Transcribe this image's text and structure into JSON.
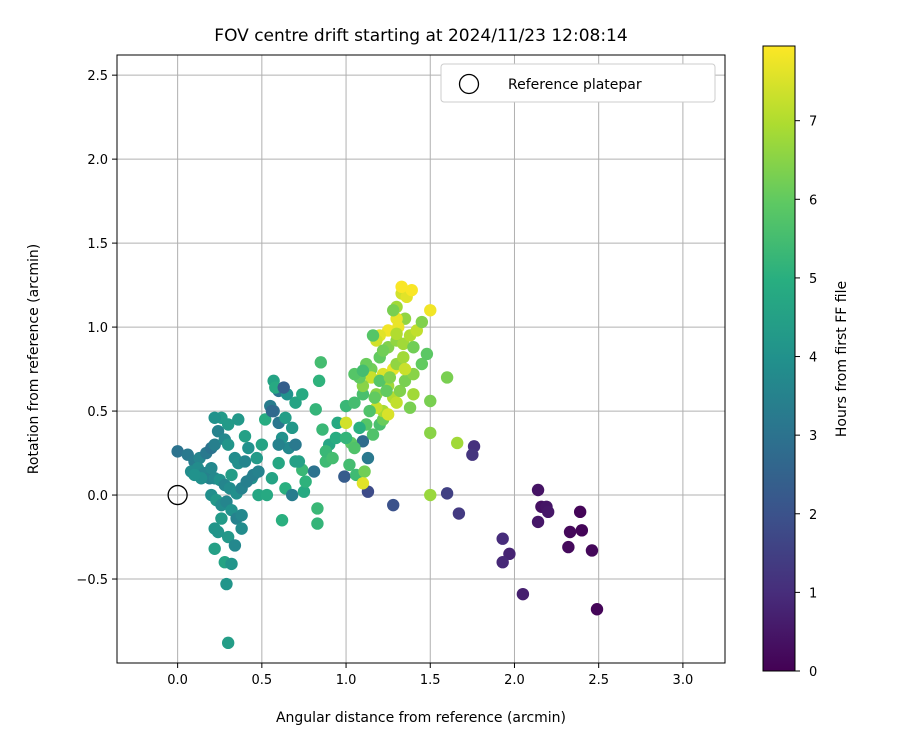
{
  "chart_data": {
    "type": "scatter",
    "title": "FOV centre drift starting at 2024/11/23 12:08:14",
    "xlabel": "Angular distance from reference (arcmin)",
    "ylabel": "Rotation from reference (arcmin)",
    "xlim": [
      -0.36,
      3.25
    ],
    "ylim": [
      -1.0,
      2.62
    ],
    "xticks": [
      0.0,
      0.5,
      1.0,
      1.5,
      2.0,
      2.5,
      3.0
    ],
    "xtick_labels": [
      "0.0",
      "0.5",
      "1.0",
      "1.5",
      "2.0",
      "2.5",
      "3.0"
    ],
    "yticks": [
      -0.5,
      0.0,
      0.5,
      1.0,
      1.5,
      2.0,
      2.5
    ],
    "ytick_labels": [
      "−0.5",
      "0.0",
      "0.5",
      "1.0",
      "1.5",
      "2.0",
      "2.5"
    ],
    "grid": true,
    "legend_position": "top-right",
    "legend": [
      {
        "label": "Reference platepar",
        "marker": "open-circle"
      }
    ],
    "reference_point": {
      "x": 0.0,
      "y": 0.0
    },
    "colorbar": {
      "label": "Hours from first FF file",
      "colormap": "viridis",
      "range": [
        0,
        7.95
      ],
      "ticks": [
        0,
        1,
        2,
        3,
        4,
        5,
        6,
        7
      ],
      "tick_labels": [
        "0",
        "1",
        "2",
        "3",
        "4",
        "5",
        "6",
        "7"
      ]
    },
    "points": [
      [
        2.49,
        -0.68,
        0.1
      ],
      [
        2.39,
        -0.1,
        0.1
      ],
      [
        2.4,
        -0.21,
        0.1
      ],
      [
        2.33,
        -0.22,
        0.15
      ],
      [
        2.32,
        -0.31,
        0.2
      ],
      [
        2.46,
        -0.33,
        0.15
      ],
      [
        2.14,
        0.03,
        0.4
      ],
      [
        2.16,
        -0.07,
        0.35
      ],
      [
        2.19,
        -0.07,
        0.45
      ],
      [
        2.2,
        -0.1,
        0.5
      ],
      [
        2.14,
        -0.16,
        0.5
      ],
      [
        2.05,
        -0.59,
        0.7
      ],
      [
        1.97,
        -0.35,
        0.8
      ],
      [
        1.93,
        -0.4,
        0.9
      ],
      [
        1.93,
        -0.26,
        1.0
      ],
      [
        1.76,
        0.29,
        1.1
      ],
      [
        1.75,
        0.24,
        1.2
      ],
      [
        1.67,
        -0.11,
        1.35
      ],
      [
        1.6,
        0.01,
        1.5
      ],
      [
        1.28,
        -0.06,
        2.0
      ],
      [
        1.13,
        0.02,
        1.8
      ],
      [
        0.99,
        0.11,
        2.3
      ],
      [
        1.13,
        0.22,
        3.2
      ],
      [
        1.1,
        0.32,
        2.8
      ],
      [
        0.0,
        0.26,
        3.0
      ],
      [
        0.06,
        0.24,
        3.2
      ],
      [
        0.1,
        0.2,
        3.3
      ],
      [
        0.13,
        0.22,
        3.6
      ],
      [
        0.17,
        0.25,
        3.2
      ],
      [
        0.2,
        0.28,
        3.0
      ],
      [
        0.22,
        0.3,
        3.4
      ],
      [
        0.24,
        0.38,
        3.5
      ],
      [
        0.28,
        0.33,
        3.7
      ],
      [
        0.3,
        0.3,
        4.1
      ],
      [
        0.34,
        0.22,
        3.8
      ],
      [
        0.36,
        0.19,
        3.9
      ],
      [
        0.4,
        0.2,
        3.6
      ],
      [
        0.44,
        0.1,
        4.0
      ],
      [
        0.08,
        0.14,
        3.8
      ],
      [
        0.12,
        0.16,
        3.8
      ],
      [
        0.16,
        0.13,
        3.6
      ],
      [
        0.19,
        0.1,
        3.5
      ],
      [
        0.22,
        0.1,
        3.7
      ],
      [
        0.25,
        0.09,
        4.0
      ],
      [
        0.28,
        0.06,
        3.6
      ],
      [
        0.31,
        0.04,
        3.8
      ],
      [
        0.35,
        0.01,
        3.9
      ],
      [
        0.38,
        0.04,
        3.5
      ],
      [
        0.41,
        0.08,
        3.4
      ],
      [
        0.45,
        0.12,
        3.4
      ],
      [
        0.48,
        0.14,
        3.5
      ],
      [
        0.2,
        0.0,
        3.9
      ],
      [
        0.23,
        -0.03,
        4.2
      ],
      [
        0.26,
        -0.06,
        3.8
      ],
      [
        0.29,
        -0.04,
        3.6
      ],
      [
        0.32,
        -0.09,
        4.0
      ],
      [
        0.35,
        -0.14,
        3.5
      ],
      [
        0.38,
        -0.2,
        3.8
      ],
      [
        0.22,
        -0.2,
        4.1
      ],
      [
        0.3,
        -0.25,
        4.2
      ],
      [
        0.34,
        -0.3,
        3.7
      ],
      [
        0.38,
        -0.12,
        3.7
      ],
      [
        0.22,
        -0.32,
        4.5
      ],
      [
        0.28,
        -0.4,
        4.6
      ],
      [
        0.32,
        -0.41,
        4.1
      ],
      [
        0.29,
        -0.53,
        4.1
      ],
      [
        0.3,
        -0.88,
        4.4
      ],
      [
        0.62,
        -0.15,
        5.0
      ],
      [
        0.83,
        -0.17,
        5.2
      ],
      [
        0.83,
        -0.08,
        5.3
      ],
      [
        0.64,
        0.04,
        5.0
      ],
      [
        0.68,
        0.0,
        3.3
      ],
      [
        0.75,
        0.02,
        4.8
      ],
      [
        0.76,
        0.08,
        5.1
      ],
      [
        0.74,
        0.15,
        5.3
      ],
      [
        0.7,
        0.2,
        4.5
      ],
      [
        0.66,
        0.28,
        3.7
      ],
      [
        0.62,
        0.34,
        4.0
      ],
      [
        0.6,
        0.43,
        3.1
      ],
      [
        0.57,
        0.5,
        2.9
      ],
      [
        0.55,
        0.53,
        3.3
      ],
      [
        0.6,
        0.62,
        3.0
      ],
      [
        0.65,
        0.6,
        4.0
      ],
      [
        0.7,
        0.55,
        4.6
      ],
      [
        0.74,
        0.6,
        4.8
      ],
      [
        0.57,
        0.68,
        4.6
      ],
      [
        0.58,
        0.64,
        4.8
      ],
      [
        0.84,
        0.68,
        5.1
      ],
      [
        0.85,
        0.79,
        5.5
      ],
      [
        0.82,
        0.51,
        5.2
      ],
      [
        0.86,
        0.39,
        5.3
      ],
      [
        0.9,
        0.3,
        4.7
      ],
      [
        0.88,
        0.2,
        5.4
      ],
      [
        0.81,
        0.14,
        3.0
      ],
      [
        0.94,
        0.34,
        4.9
      ],
      [
        0.95,
        0.43,
        4.8
      ],
      [
        1.0,
        0.53,
        5.3
      ],
      [
        1.05,
        0.55,
        5.5
      ],
      [
        1.1,
        0.6,
        5.6
      ],
      [
        1.12,
        0.42,
        5.8
      ],
      [
        1.16,
        0.36,
        5.7
      ],
      [
        1.2,
        0.42,
        5.6
      ],
      [
        1.22,
        0.45,
        6.1
      ],
      [
        1.03,
        0.31,
        5.9
      ],
      [
        1.05,
        0.28,
        5.7
      ],
      [
        1.02,
        0.18,
        5.5
      ],
      [
        1.06,
        0.12,
        5.4
      ],
      [
        1.11,
        0.14,
        6.2
      ],
      [
        1.1,
        0.07,
        7.6
      ],
      [
        1.18,
        0.6,
        6.5
      ],
      [
        1.25,
        0.65,
        6.8
      ],
      [
        1.28,
        0.58,
        7.0
      ],
      [
        1.3,
        0.55,
        7.2
      ],
      [
        1.22,
        0.5,
        6.9
      ],
      [
        1.18,
        0.52,
        7.3
      ],
      [
        1.25,
        0.48,
        7.5
      ],
      [
        1.32,
        0.62,
        6.4
      ],
      [
        1.35,
        0.68,
        6.3
      ],
      [
        1.4,
        0.72,
        6.5
      ],
      [
        1.45,
        0.78,
        6.0
      ],
      [
        1.48,
        0.84,
        5.9
      ],
      [
        1.38,
        0.52,
        6.3
      ],
      [
        1.15,
        0.75,
        6.2
      ],
      [
        1.2,
        0.82,
        6.0
      ],
      [
        1.25,
        0.88,
        6.4
      ],
      [
        1.3,
        0.92,
        6.6
      ],
      [
        1.34,
        0.9,
        6.8
      ],
      [
        1.38,
        0.95,
        7.0
      ],
      [
        1.42,
        0.98,
        7.2
      ],
      [
        1.45,
        1.03,
        6.4
      ],
      [
        1.35,
        1.05,
        6.6
      ],
      [
        1.3,
        1.12,
        6.8
      ],
      [
        1.33,
        1.2,
        7.4
      ],
      [
        1.36,
        1.18,
        7.6
      ],
      [
        1.39,
        1.22,
        7.9
      ],
      [
        1.5,
        1.1,
        7.8
      ],
      [
        1.33,
        1.24,
        7.9
      ],
      [
        1.3,
        1.05,
        7.7
      ],
      [
        1.25,
        0.98,
        7.8
      ],
      [
        1.2,
        0.95,
        7.6
      ],
      [
        1.18,
        0.92,
        7.4
      ],
      [
        1.28,
        0.75,
        7.7
      ],
      [
        1.15,
        0.7,
        7.3
      ],
      [
        1.1,
        0.65,
        6.5
      ],
      [
        1.08,
        0.7,
        6.0
      ],
      [
        1.05,
        0.72,
        5.8
      ],
      [
        1.12,
        0.78,
        6.1
      ],
      [
        1.22,
        0.72,
        7.5
      ],
      [
        1.31,
        1.0,
        7.7
      ],
      [
        1.6,
        0.7,
        6.3
      ],
      [
        1.5,
        0.56,
        6.3
      ],
      [
        1.5,
        0.37,
        6.5
      ],
      [
        1.66,
        0.31,
        6.8
      ],
      [
        1.5,
        0.0,
        6.7
      ],
      [
        1.0,
        0.43,
        7.4
      ],
      [
        0.47,
        0.22,
        4.3
      ],
      [
        0.5,
        0.3,
        4.6
      ],
      [
        0.52,
        0.45,
        4.9
      ],
      [
        0.4,
        0.35,
        4.5
      ],
      [
        0.36,
        0.45,
        4.2
      ],
      [
        0.42,
        0.28,
        4.0
      ],
      [
        0.32,
        0.12,
        4.4
      ],
      [
        0.48,
        0.0,
        4.7
      ],
      [
        0.53,
        0.0,
        4.8
      ],
      [
        0.56,
        0.1,
        4.6
      ],
      [
        0.6,
        0.19,
        4.7
      ],
      [
        0.64,
        0.46,
        4.4
      ],
      [
        0.68,
        0.4,
        4.2
      ],
      [
        0.72,
        0.2,
        4.5
      ],
      [
        0.26,
        -0.14,
        4.3
      ],
      [
        0.24,
        -0.22,
        4.1
      ],
      [
        0.2,
        0.16,
        3.7
      ],
      [
        0.14,
        0.1,
        3.9
      ],
      [
        0.1,
        0.12,
        4.0
      ],
      [
        0.26,
        0.46,
        4.3
      ],
      [
        0.22,
        0.46,
        4.0
      ],
      [
        0.3,
        0.42,
        4.3
      ],
      [
        0.63,
        0.64,
        2.4
      ],
      [
        0.56,
        0.5,
        2.7
      ],
      [
        0.6,
        0.3,
        3.5
      ],
      [
        0.7,
        0.3,
        3.2
      ],
      [
        0.88,
        0.26,
        5.3
      ],
      [
        0.92,
        0.22,
        5.5
      ],
      [
        1.0,
        0.34,
        5.2
      ],
      [
        1.08,
        0.4,
        5.0
      ],
      [
        1.14,
        0.5,
        5.7
      ],
      [
        1.17,
        0.58,
        6.0
      ],
      [
        1.1,
        0.74,
        5.5
      ],
      [
        1.2,
        0.68,
        5.8
      ],
      [
        1.24,
        0.62,
        6.0
      ],
      [
        1.26,
        0.7,
        6.4
      ],
      [
        1.3,
        0.78,
        6.6
      ],
      [
        1.34,
        0.82,
        6.8
      ],
      [
        1.16,
        0.95,
        5.8
      ],
      [
        1.22,
        0.86,
        6.2
      ],
      [
        1.4,
        0.88,
        6.2
      ],
      [
        1.28,
        1.1,
        6.3
      ],
      [
        1.3,
        0.96,
        7.0
      ],
      [
        1.35,
        0.75,
        7.3
      ],
      [
        1.4,
        0.6,
        6.8
      ]
    ]
  }
}
